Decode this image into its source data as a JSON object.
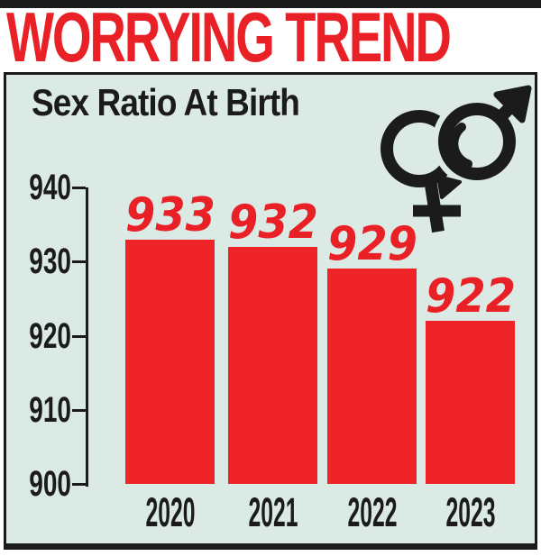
{
  "header": {
    "title": "WORRYING TREND"
  },
  "panel": {
    "title": "Sex Ratio At Birth"
  },
  "icons": {
    "corner_icon": "male-female-interlocked-gender-icon"
  },
  "colors": {
    "accent_red": "#e92127",
    "bar_red": "#ee2328",
    "panel_bg": "#dbeae5",
    "ink": "#1b1b1b",
    "page_bg": "#ffffff"
  },
  "chart_data": {
    "type": "bar",
    "title": "Sex Ratio At Birth",
    "categories": [
      "2020",
      "2021",
      "2022",
      "2023"
    ],
    "values": [
      933,
      932,
      929,
      922
    ],
    "xlabel": "",
    "ylabel": "",
    "ylim": [
      900,
      940
    ],
    "yticks": [
      940,
      930,
      920,
      910,
      900
    ],
    "grid": false,
    "legend": false,
    "bar_color": "#ee2328",
    "value_label_color": "#e92127",
    "value_labels_shown": true
  }
}
